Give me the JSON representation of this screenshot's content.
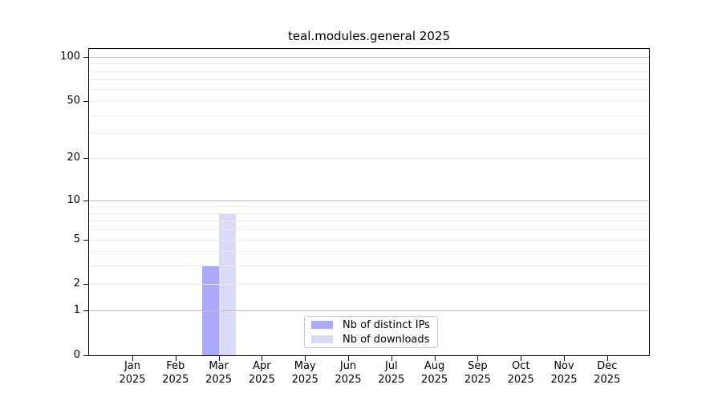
{
  "title": "teal.modules.general 2025",
  "chart_data": {
    "type": "bar",
    "title": "teal.modules.general 2025",
    "categories": [
      "Jan 2025",
      "Feb 2025",
      "Mar 2025",
      "Apr 2025",
      "May 2025",
      "Jun 2025",
      "Jul 2025",
      "Aug 2025",
      "Sep 2025",
      "Oct 2025",
      "Nov 2025",
      "Dec 2025"
    ],
    "series": [
      {
        "name": "Nb of distinct IPs",
        "color": "#aaaaf8",
        "values": [
          0,
          0,
          3,
          0,
          0,
          0,
          0,
          0,
          0,
          0,
          0,
          0
        ]
      },
      {
        "name": "Nb of downloads",
        "color": "#d9d9f8",
        "values": [
          0,
          0,
          8,
          0,
          0,
          0,
          0,
          0,
          0,
          0,
          0,
          0
        ]
      }
    ],
    "xlabel": "",
    "ylabel": "",
    "yscale": "log1p",
    "ylim": [
      0,
      113
    ],
    "yticks": [
      0,
      1,
      2,
      5,
      10,
      20,
      50,
      100
    ],
    "gridlines": {
      "major": [
        1,
        10,
        100
      ],
      "minor": [
        2,
        3,
        4,
        5,
        6,
        7,
        8,
        9,
        20,
        30,
        40,
        50,
        60,
        70,
        80,
        90
      ]
    },
    "legend": {
      "position": "bottom-center",
      "items": [
        "Nb of distinct IPs",
        "Nb of downloads"
      ]
    },
    "colors": {
      "grid_major": "#bdbdbd",
      "grid_minor": "#ededed",
      "spine": "#000000",
      "text": "#000000",
      "legend_border": "#cccccc",
      "background": "#ffffff"
    }
  }
}
